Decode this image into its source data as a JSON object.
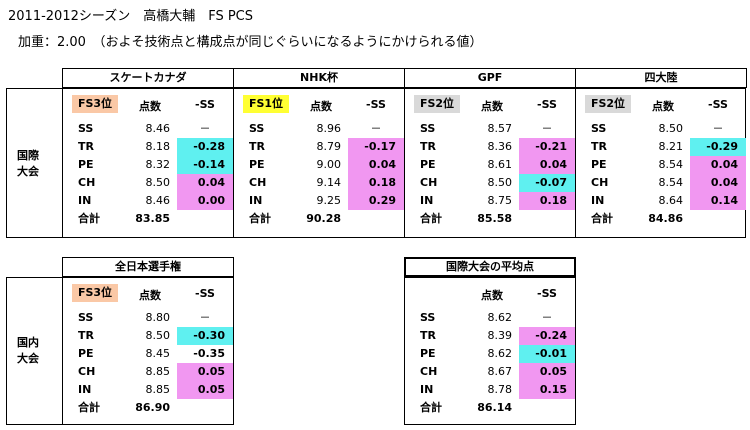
{
  "title": "2011-2012シーズン　高橋大輔　FS PCS",
  "subtitle": "加重：2.00　（およそ技術点と構成点が同じぐらいになるようにかけられる値）",
  "colors": {
    "cyan": "#5ff0f0",
    "magenta": "#f197f1",
    "peach": "#fac8a6",
    "yellow": "#ffff33",
    "grey": "#d9d9d9"
  },
  "col_headers": {
    "score": "点数",
    "diff": "-SS"
  },
  "row_labels": [
    "SS",
    "TR",
    "PE",
    "CH",
    "IN",
    "合計"
  ],
  "groups": {
    "intl_label": "国際\n大会",
    "dom_label": "国内\n大会"
  },
  "competitions": [
    {
      "name": "スケートカナダ",
      "rank": "FS3位",
      "rank_color": "peach",
      "scores": [
        "8.46",
        "8.18",
        "8.32",
        "8.50",
        "8.46"
      ],
      "diffs": [
        "－",
        "-0.28",
        "-0.14",
        "0.04",
        "0.00"
      ],
      "diff_colors": [
        "",
        "cyan",
        "cyan",
        "magenta",
        "magenta"
      ],
      "total": "83.85"
    },
    {
      "name": "NHK杯",
      "rank": "FS1位",
      "rank_color": "yellow",
      "scores": [
        "8.96",
        "8.79",
        "9.00",
        "9.14",
        "9.25"
      ],
      "diffs": [
        "－",
        "-0.17",
        "0.04",
        "0.18",
        "0.29"
      ],
      "diff_colors": [
        "",
        "magenta",
        "magenta",
        "magenta",
        "magenta"
      ],
      "total": "90.28"
    },
    {
      "name": "GPF",
      "rank": "FS2位",
      "rank_color": "grey",
      "scores": [
        "8.57",
        "8.36",
        "8.61",
        "8.50",
        "8.75"
      ],
      "diffs": [
        "－",
        "-0.21",
        "0.04",
        "-0.07",
        "0.18"
      ],
      "diff_colors": [
        "",
        "magenta",
        "magenta",
        "cyan",
        "magenta"
      ],
      "total": "85.58"
    },
    {
      "name": "四大陸",
      "rank": "FS2位",
      "rank_color": "grey",
      "scores": [
        "8.50",
        "8.21",
        "8.54",
        "8.54",
        "8.64"
      ],
      "diffs": [
        "－",
        "-0.29",
        "0.04",
        "0.04",
        "0.14"
      ],
      "diff_colors": [
        "",
        "cyan",
        "magenta",
        "magenta",
        "magenta"
      ],
      "total": "84.86"
    }
  ],
  "national": {
    "name": "全日本選手権",
    "rank": "FS3位",
    "rank_color": "peach",
    "scores": [
      "8.80",
      "8.50",
      "8.45",
      "8.85",
      "8.85"
    ],
    "diffs": [
      "－",
      "-0.30",
      "-0.35",
      "0.05",
      "0.05"
    ],
    "diff_colors": [
      "",
      "cyan",
      "",
      "magenta",
      "magenta"
    ],
    "total": "86.90"
  },
  "average": {
    "name": "国際大会の平均点",
    "scores": [
      "8.62",
      "8.39",
      "8.62",
      "8.67",
      "8.78"
    ],
    "diffs": [
      "－",
      "-0.24",
      "-0.01",
      "0.05",
      "0.15"
    ],
    "diff_colors": [
      "",
      "magenta",
      "cyan",
      "magenta",
      "magenta"
    ],
    "total": "86.14"
  }
}
